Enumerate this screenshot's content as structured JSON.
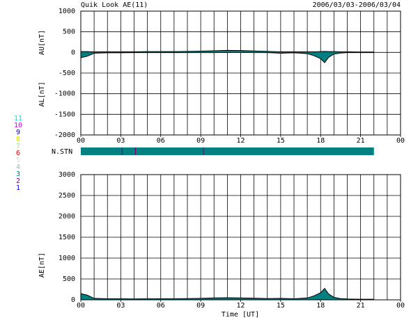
{
  "chart_data": [
    {
      "type": "band",
      "title": "Quik Look AE(11)",
      "subtitle": "2006/03/03-2006/03/04",
      "x": [
        0,
        0.5,
        1,
        2,
        3,
        4,
        5,
        6,
        7,
        8,
        9,
        10,
        11,
        12,
        13,
        14,
        15,
        16,
        17,
        17.5,
        18,
        18.3,
        18.6,
        19,
        19.5,
        20,
        21,
        22
      ],
      "series": [
        {
          "name": "AU[nT]",
          "color": "#008080",
          "values": [
            20,
            20,
            15,
            15,
            15,
            15,
            20,
            20,
            20,
            25,
            30,
            40,
            50,
            45,
            35,
            25,
            15,
            15,
            15,
            15,
            20,
            25,
            20,
            20,
            15,
            15,
            10,
            10
          ]
        },
        {
          "name": "AL[nT]",
          "color": "#008080",
          "values": [
            -130,
            -90,
            -20,
            -10,
            -10,
            -5,
            -5,
            -5,
            -5,
            -5,
            -5,
            -5,
            0,
            0,
            -5,
            -5,
            -20,
            -10,
            -30,
            -80,
            -150,
            -250,
            -120,
            -40,
            -15,
            -5,
            -5,
            -5
          ]
        }
      ],
      "xlim": [
        0,
        24
      ],
      "xticks": [
        {
          "value": 0,
          "label": "00"
        },
        {
          "value": 3,
          "label": "03"
        },
        {
          "value": 6,
          "label": "06"
        },
        {
          "value": 9,
          "label": "09"
        },
        12,
        15,
        18,
        21,
        {
          "value": 24,
          "label": "00"
        }
      ],
      "xgrid": [
        0,
        1,
        2,
        3,
        4,
        5,
        6,
        7,
        8,
        9,
        10,
        11,
        12,
        13,
        14,
        15,
        16,
        17,
        18,
        19,
        20,
        21,
        22,
        23,
        24
      ],
      "ylim": [
        -2000,
        1000
      ],
      "yticks": [
        -2000,
        -1500,
        -1000,
        -500,
        0,
        500,
        1000
      ],
      "grid": true
    },
    {
      "type": "area",
      "xlabel": "Time [UT]",
      "x": [
        0,
        0.5,
        1,
        2,
        3,
        4,
        5,
        6,
        7,
        8,
        9,
        10,
        11,
        12,
        13,
        14,
        15,
        16,
        17,
        17.5,
        18,
        18.3,
        18.6,
        19,
        19.5,
        20,
        21,
        22
      ],
      "series": [
        {
          "name": "AE[nT]",
          "color": "#008080",
          "values": [
            150,
            110,
            35,
            25,
            25,
            20,
            25,
            25,
            25,
            30,
            35,
            45,
            50,
            45,
            40,
            30,
            35,
            25,
            45,
            95,
            170,
            275,
            140,
            60,
            30,
            20,
            15,
            15
          ]
        }
      ],
      "xlim": [
        0,
        24
      ],
      "xticks": [
        {
          "value": 0,
          "label": "00"
        },
        {
          "value": 3,
          "label": "03"
        },
        {
          "value": 6,
          "label": "06"
        },
        {
          "value": 9,
          "label": "09"
        },
        12,
        15,
        18,
        21,
        {
          "value": 24,
          "label": "00"
        }
      ],
      "xgrid": [
        0,
        1,
        2,
        3,
        4,
        5,
        6,
        7,
        8,
        9,
        10,
        11,
        12,
        13,
        14,
        15,
        16,
        17,
        18,
        19,
        20,
        21,
        22,
        23,
        24
      ],
      "ylim": [
        0,
        3000
      ],
      "yticks": [
        0,
        500,
        1000,
        1500,
        2000,
        2500,
        3000
      ],
      "grid": true
    }
  ],
  "station_bar": {
    "label": "N.STN",
    "range": [
      0,
      22
    ],
    "color": "#008080",
    "marks": [
      3.1,
      4.1,
      9.2
    ],
    "mark_color": "#800080"
  },
  "station_legend": [
    {
      "label": 11,
      "color": "#00e0e0"
    },
    {
      "label": 10,
      "color": "#e000e0"
    },
    {
      "label": 9,
      "color": "#0000c0"
    },
    {
      "label": 8,
      "color": "#e0e000"
    },
    {
      "label": 7,
      "color": "#a0e0a0"
    },
    {
      "label": 6,
      "color": "#e00000"
    },
    {
      "label": 5,
      "color": "#d8d8d8"
    },
    {
      "label": 4,
      "color": "#b0b0b0"
    },
    {
      "label": 3,
      "color": "#008080"
    },
    {
      "label": 2,
      "color": "#800080"
    },
    {
      "label": 1,
      "color": "#0000e0"
    }
  ]
}
